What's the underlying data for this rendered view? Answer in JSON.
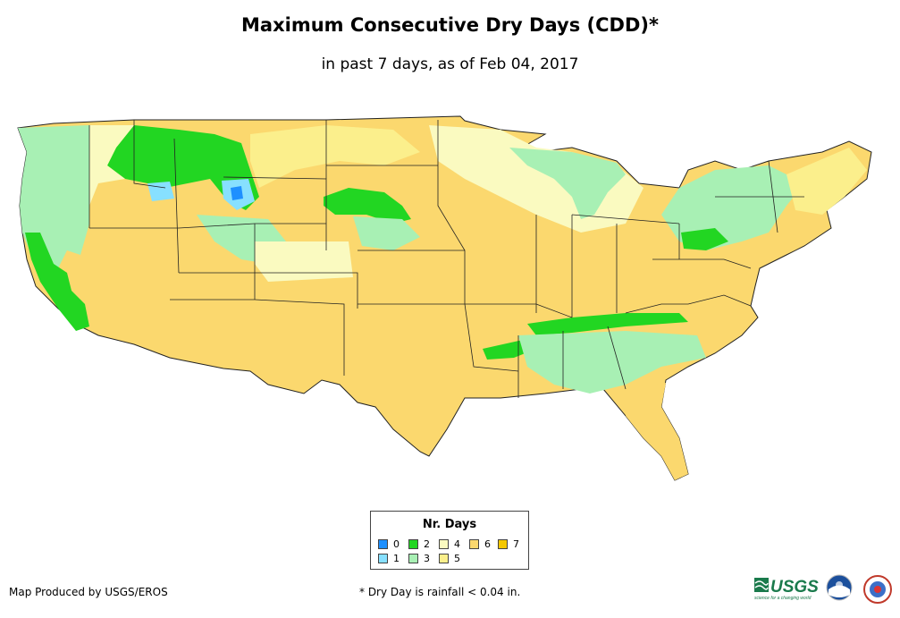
{
  "title": "Maximum Consecutive Dry Days (CDD)*",
  "subtitle": "in past 7 days, as of Feb 04, 2017",
  "legend": {
    "title": "Nr. Days",
    "items": [
      {
        "label": "0",
        "color": "#1e90ff"
      },
      {
        "label": "1",
        "color": "#87e0ff"
      },
      {
        "label": "2",
        "color": "#22d622"
      },
      {
        "label": "3",
        "color": "#a8f0b4"
      },
      {
        "label": "4",
        "color": "#fafac0"
      },
      {
        "label": "5",
        "color": "#fbef8c"
      },
      {
        "label": "6",
        "color": "#fbd86e"
      },
      {
        "label": "7",
        "color": "#f5c800"
      }
    ]
  },
  "credit": "Map Produced by USGS/EROS",
  "footnote": "* Dry Day is rainfall < 0.04 in.",
  "logos": {
    "usgs_text": "USGS",
    "usgs_tagline": "science for a changing world"
  }
}
